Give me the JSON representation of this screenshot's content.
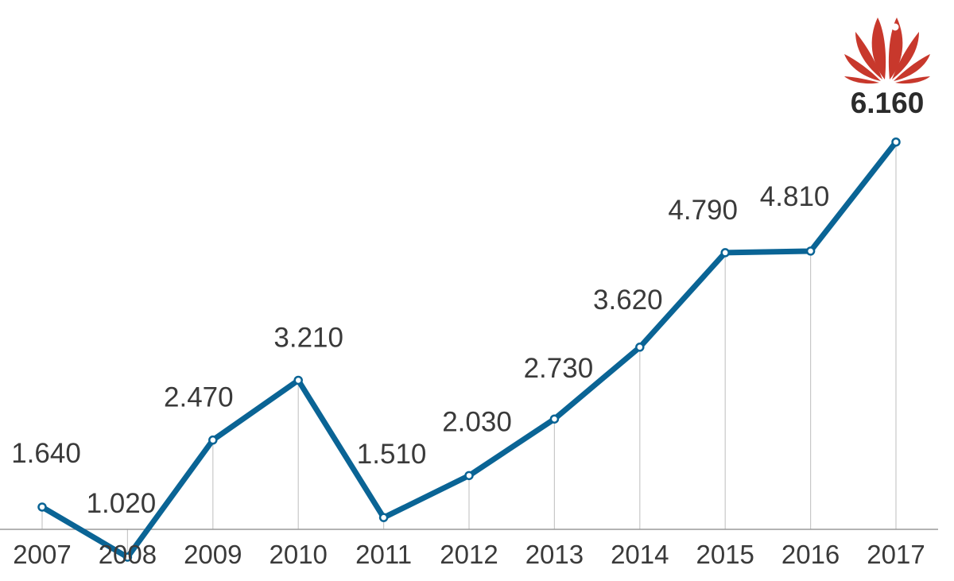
{
  "chart_data": {
    "type": "line",
    "x": [
      "2007",
      "2008",
      "2009",
      "2010",
      "2011",
      "2012",
      "2013",
      "2014",
      "2015",
      "2016",
      "2017"
    ],
    "values": [
      1640,
      1020,
      2470,
      3210,
      1510,
      2030,
      2730,
      3620,
      4790,
      4810,
      6160
    ],
    "value_labels": [
      "1.640",
      "1.020",
      "2.470",
      "3.210",
      "1.510",
      "2.030",
      "2.730",
      "3.620",
      "4.790",
      "4.810",
      "6.160"
    ],
    "title": "",
    "xlabel": "",
    "ylabel": "",
    "grid": false,
    "colors": {
      "line": "#0a6495",
      "marker_fill": "#ffffff",
      "drop_lines": "#c8c8c8",
      "axis": "#9a9a9a",
      "logo": "#c8382c"
    },
    "logo_icon": "huawei-logo-icon"
  }
}
